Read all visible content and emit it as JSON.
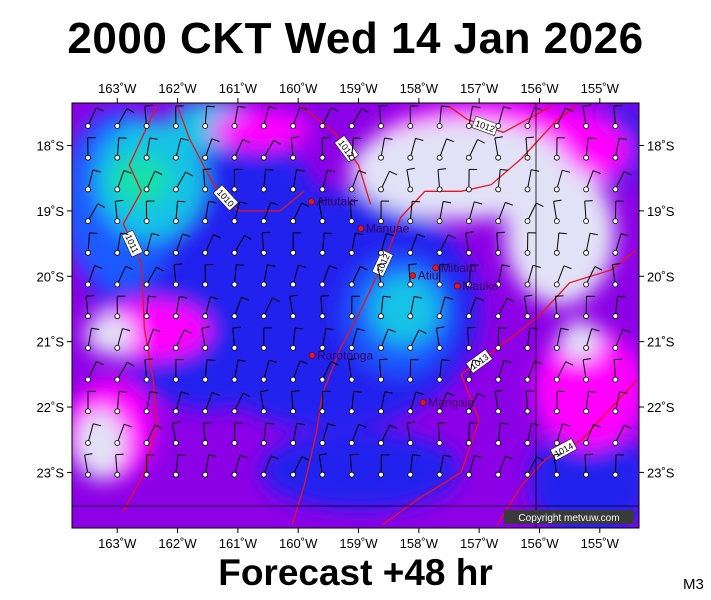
{
  "title": "2000 CKT Wed 14 Jan 2026",
  "footer": "Forecast +48 hr",
  "model": "M3",
  "copyright": "Copyright metvuw.com",
  "map": {
    "lon_range": [
      163.75,
      154.35
    ],
    "lat_range": [
      17.35,
      23.85
    ],
    "lon_ticks": [
      {
        "value": 163,
        "label": "163˚W"
      },
      {
        "value": 162,
        "label": "162˚W"
      },
      {
        "value": 161,
        "label": "161˚W"
      },
      {
        "value": 160,
        "label": "160˚W"
      },
      {
        "value": 159,
        "label": "159˚W"
      },
      {
        "value": 158,
        "label": "158˚W"
      },
      {
        "value": 157,
        "label": "157˚W"
      },
      {
        "value": 156,
        "label": "156˚W"
      },
      {
        "value": 155,
        "label": "155˚W"
      }
    ],
    "lat_ticks": [
      {
        "value": 18,
        "label": "18˚S"
      },
      {
        "value": 19,
        "label": "19˚S"
      },
      {
        "value": 20,
        "label": "20˚S"
      },
      {
        "value": 21,
        "label": "21˚S"
      },
      {
        "value": 22,
        "label": "22˚S"
      },
      {
        "value": 23,
        "label": "23˚S"
      }
    ],
    "places": [
      {
        "name": "Aitutaki",
        "lon": 159.78,
        "lat": 18.86
      },
      {
        "name": "Manuae",
        "lon": 158.96,
        "lat": 19.27
      },
      {
        "name": "Atiu",
        "lon": 158.1,
        "lat": 19.99
      },
      {
        "name": "Mitiaro",
        "lon": 157.72,
        "lat": 19.87
      },
      {
        "name": "Mauke",
        "lon": 157.36,
        "lat": 20.15
      },
      {
        "name": "Rarotonga",
        "lon": 159.77,
        "lat": 21.21
      },
      {
        "name": "Mangaia",
        "lon": 157.93,
        "lat": 21.93
      }
    ],
    "isobars": [
      {
        "label": "1011",
        "points": [
          [
            162.35,
            17.4
          ],
          [
            162.6,
            17.9
          ],
          [
            162.8,
            18.3
          ],
          [
            162.6,
            18.7
          ],
          [
            162.9,
            19.2
          ],
          [
            162.6,
            19.8
          ],
          [
            162.55,
            20.8
          ],
          [
            162.4,
            21.6
          ],
          [
            162.35,
            22.3
          ],
          [
            162.55,
            23.0
          ],
          [
            162.9,
            23.6
          ]
        ]
      },
      {
        "label": "1010",
        "points": [
          [
            162.0,
            17.4
          ],
          [
            161.8,
            17.9
          ],
          [
            161.4,
            18.6
          ],
          [
            161.0,
            19.0
          ],
          [
            160.3,
            19.0
          ],
          [
            159.9,
            18.7
          ]
        ]
      },
      {
        "label": "1012",
        "points": [
          [
            159.95,
            17.4
          ],
          [
            159.4,
            17.8
          ],
          [
            159.0,
            18.3
          ],
          [
            158.8,
            18.9
          ]
        ]
      },
      {
        "label": "1012",
        "points": [
          [
            157.5,
            17.4
          ],
          [
            157.2,
            17.6
          ],
          [
            156.6,
            17.8
          ],
          [
            155.8,
            17.4
          ]
        ]
      },
      {
        "label": "1012",
        "points": [
          [
            160.1,
            23.8
          ],
          [
            159.9,
            23.2
          ],
          [
            159.7,
            22.4
          ],
          [
            159.6,
            21.8
          ],
          [
            159.3,
            21.1
          ],
          [
            158.95,
            20.5
          ],
          [
            158.7,
            20.0
          ],
          [
            158.5,
            19.6
          ],
          [
            158.3,
            19.1
          ],
          [
            157.9,
            18.7
          ],
          [
            157.3,
            18.7
          ],
          [
            156.8,
            18.6
          ],
          [
            156.3,
            18.2
          ],
          [
            155.7,
            17.6
          ],
          [
            155.4,
            17.4
          ]
        ]
      },
      {
        "label": "1013",
        "points": [
          [
            158.6,
            23.8
          ],
          [
            158.0,
            23.4
          ],
          [
            157.3,
            23.0
          ],
          [
            157.0,
            22.2
          ],
          [
            157.3,
            21.5
          ],
          [
            156.7,
            21.1
          ],
          [
            156.0,
            20.6
          ],
          [
            155.5,
            20.1
          ],
          [
            154.8,
            19.9
          ],
          [
            154.4,
            19.6
          ]
        ]
      },
      {
        "label": "1014",
        "points": [
          [
            156.7,
            23.8
          ],
          [
            156.3,
            23.2
          ],
          [
            155.9,
            22.8
          ],
          [
            155.3,
            22.5
          ],
          [
            154.8,
            22.0
          ],
          [
            154.4,
            21.6
          ]
        ]
      }
    ]
  }
}
